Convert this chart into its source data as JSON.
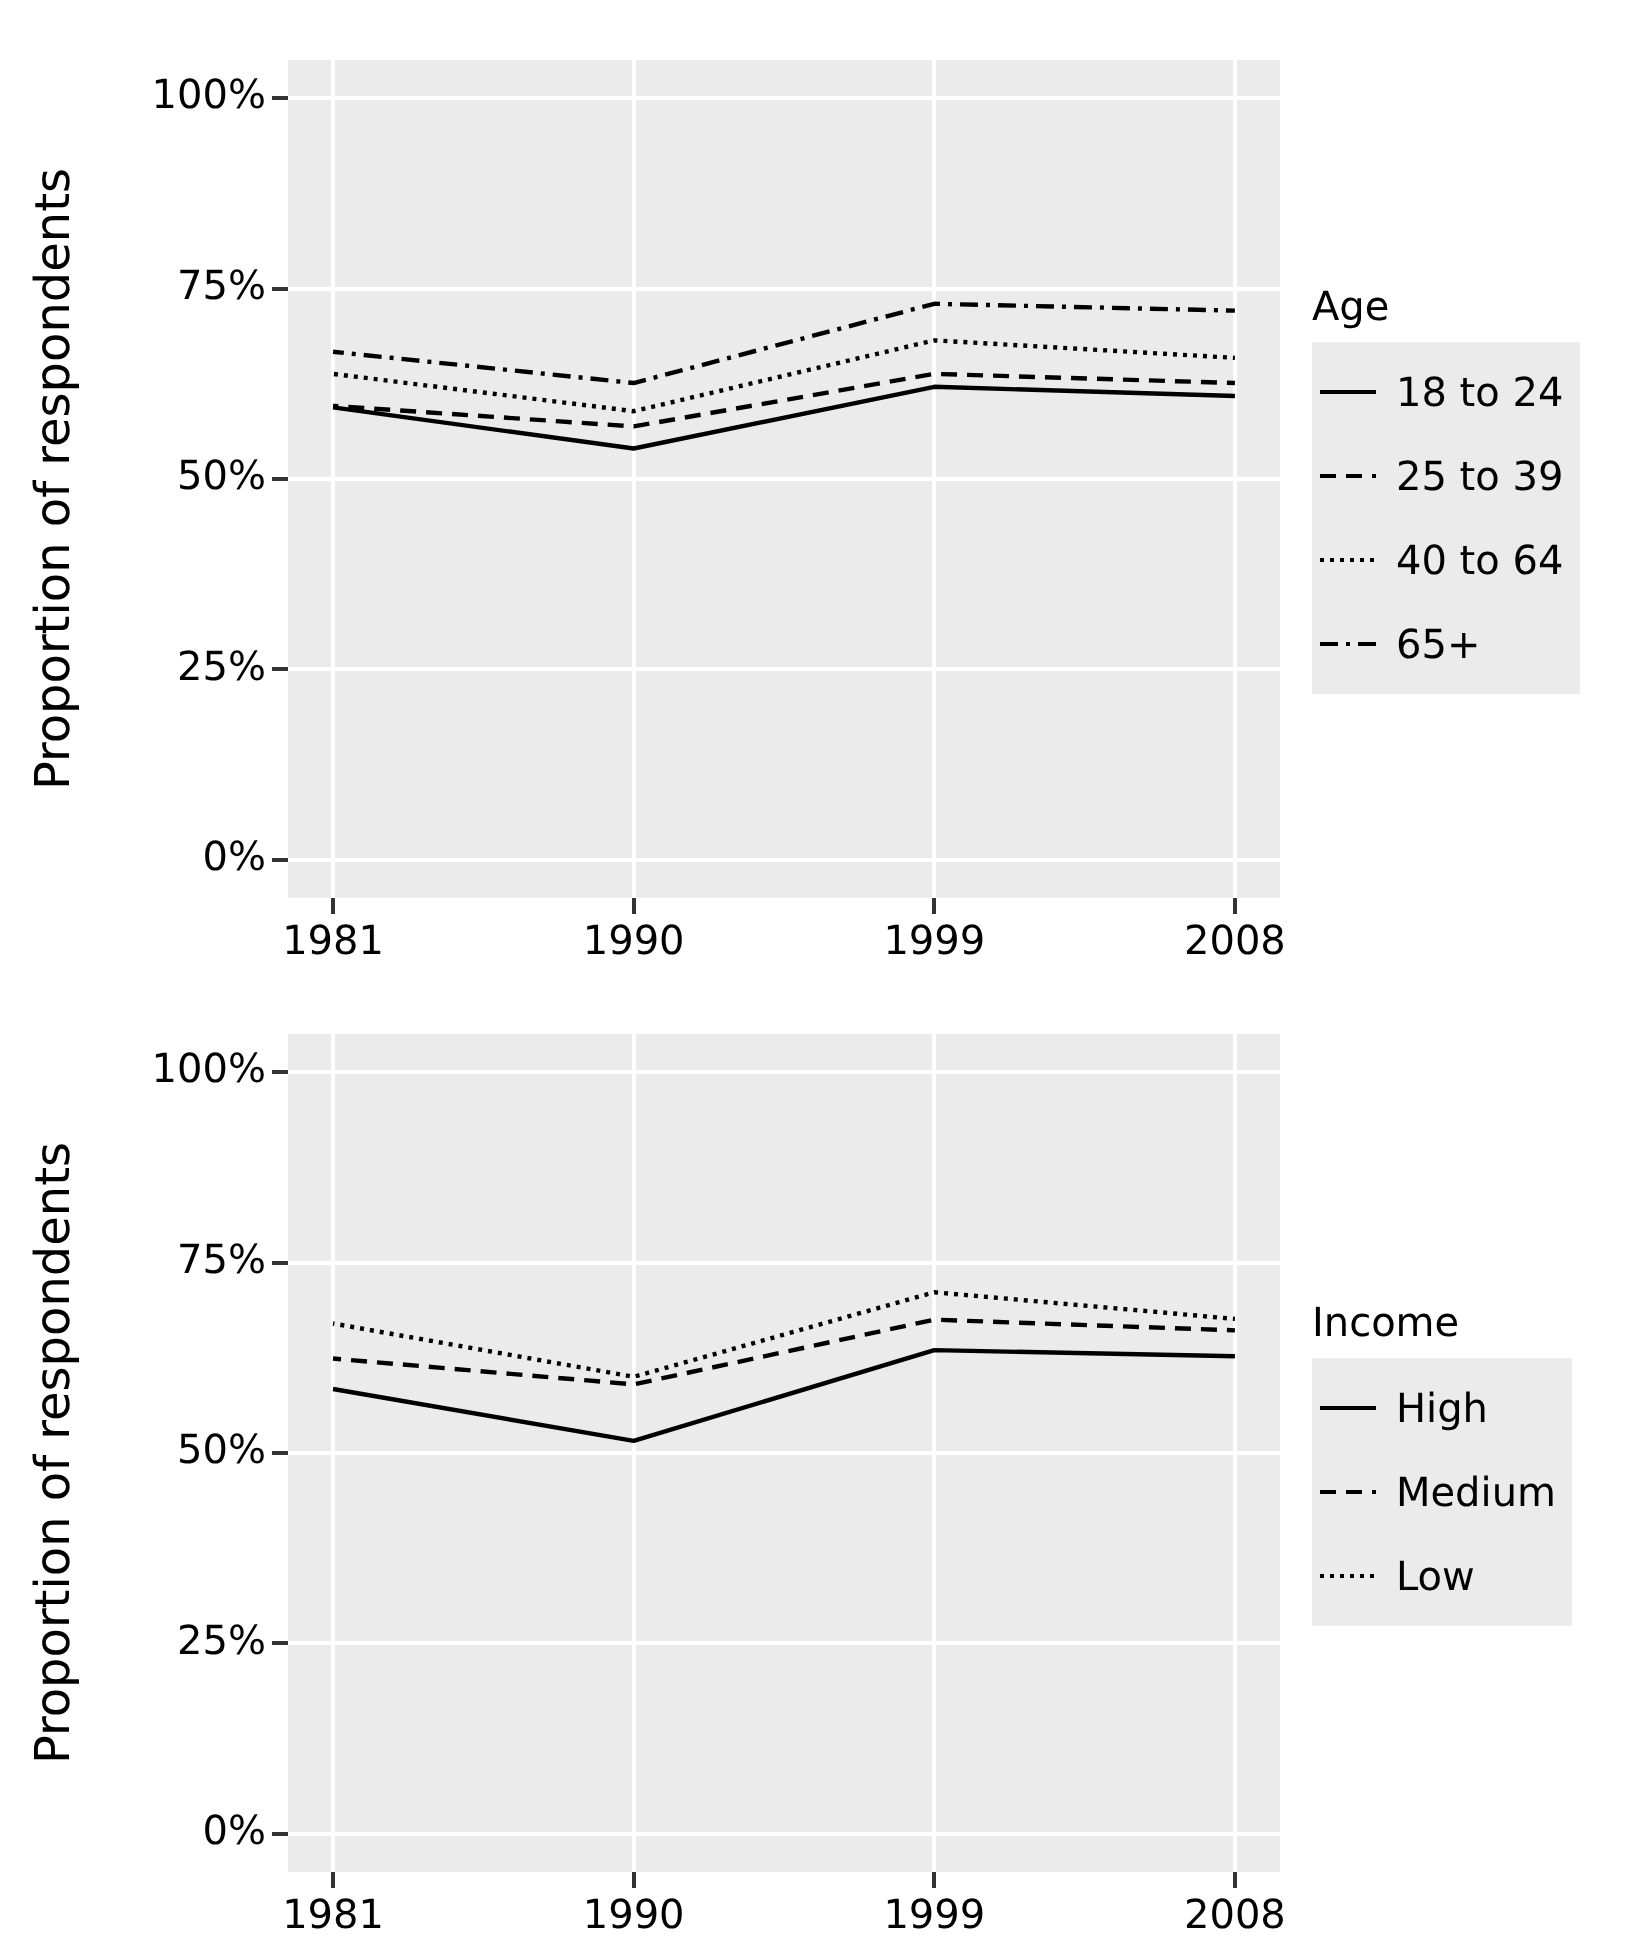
{
  "chart_data": [
    {
      "type": "line",
      "ylabel": "Proportion of respondents",
      "legend_title": "Age",
      "legend": "right",
      "grid": true,
      "marker": "none",
      "x": [
        1981,
        1990,
        1999,
        2008
      ],
      "xlim": [
        1979.65,
        2009.35
      ],
      "xticks": [
        1981,
        1990,
        1999,
        2008
      ],
      "ylim": [
        -5,
        105
      ],
      "yticks": [
        {
          "value": 0,
          "label": "0%"
        },
        {
          "value": 25,
          "label": "25%"
        },
        {
          "value": 50,
          "label": "50%"
        },
        {
          "value": 75,
          "label": "75%"
        },
        {
          "value": 100,
          "label": "100%"
        }
      ],
      "series": [
        {
          "name": "18 to 24",
          "color": "#000000",
          "line_style": "solid",
          "values": [
            59.4,
            54.0,
            62.1,
            60.9
          ]
        },
        {
          "name": "25 to 39",
          "color": "#000000",
          "line_style": "dashed",
          "values": [
            59.6,
            56.9,
            63.8,
            62.6
          ]
        },
        {
          "name": "40 to 64",
          "color": "#000000",
          "line_style": "dotted",
          "values": [
            63.8,
            58.9,
            68.2,
            65.9
          ]
        },
        {
          "name": "65+",
          "color": "#000000",
          "line_style": "dashdot",
          "values": [
            66.7,
            62.6,
            73.0,
            72.1
          ]
        }
      ]
    },
    {
      "type": "line",
      "ylabel": "Proportion of respondents",
      "legend_title": "Income",
      "legend": "right",
      "grid": true,
      "marker": "none",
      "x": [
        1981,
        1990,
        1999,
        2008
      ],
      "xlim": [
        1979.65,
        2009.35
      ],
      "xticks": [
        1981,
        1990,
        1999,
        2008
      ],
      "ylim": [
        -5,
        105
      ],
      "yticks": [
        {
          "value": 0,
          "label": "0%"
        },
        {
          "value": 25,
          "label": "25%"
        },
        {
          "value": 50,
          "label": "50%"
        },
        {
          "value": 75,
          "label": "75%"
        },
        {
          "value": 100,
          "label": "100%"
        }
      ],
      "series": [
        {
          "name": "High",
          "color": "#000000",
          "line_style": "solid",
          "values": [
            58.4,
            51.6,
            63.5,
            62.7
          ]
        },
        {
          "name": "Medium",
          "color": "#000000",
          "line_style": "dashed",
          "values": [
            62.4,
            59.0,
            67.5,
            66.1
          ]
        },
        {
          "name": "Low",
          "color": "#000000",
          "line_style": "dotted",
          "values": [
            67.0,
            60.0,
            71.1,
            67.6
          ]
        }
      ]
    }
  ]
}
